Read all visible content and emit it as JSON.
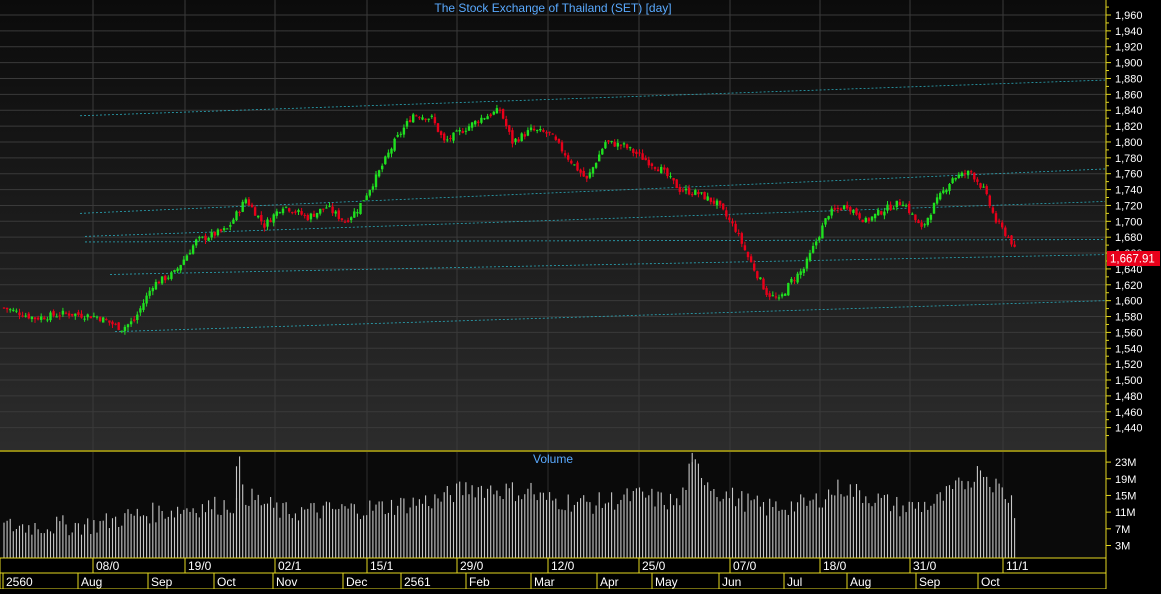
{
  "chart_data": {
    "type": "candlestick",
    "title": "The Stock Exchange of Thailand (SET) [day]",
    "volume_title": "Volume",
    "last_price_label": "1,667.91",
    "ylim": [
      1420,
      1970
    ],
    "yticks": [
      "1,960",
      "1,940",
      "1,920",
      "1,900",
      "1,880",
      "1,860",
      "1,840",
      "1,820",
      "1,800",
      "1,780",
      "1,760",
      "1,740",
      "1,720",
      "1,700",
      "1,680",
      "1,660",
      "1,640",
      "1,620",
      "1,600",
      "1,580",
      "1,560",
      "1,540",
      "1,520",
      "1,500",
      "1,480",
      "1,460",
      "1,440"
    ],
    "volume_ylim": [
      0,
      25
    ],
    "volume_ticks": [
      "23M",
      "19M",
      "15M",
      "11M",
      "7M",
      "3M"
    ],
    "date_ticks": [
      "08/0",
      "19/0",
      "02/1",
      "15/1",
      "29/0",
      "12/0",
      "25/0",
      "07/0",
      "18/0",
      "31/0",
      "11/1"
    ],
    "month_labels": [
      "2560",
      "Aug",
      "Sep",
      "Oct",
      "Nov",
      "Dec",
      "2561",
      "Feb",
      "Mar",
      "Apr",
      "May",
      "Jun",
      "Jul",
      "Aug",
      "Sep",
      "Oct"
    ],
    "anchors": [
      [
        0,
        1591
      ],
      [
        10,
        1578
      ],
      [
        20,
        1584
      ],
      [
        30,
        1580
      ],
      [
        38,
        1565
      ],
      [
        42,
        1575
      ],
      [
        48,
        1620
      ],
      [
        55,
        1635
      ],
      [
        62,
        1675
      ],
      [
        72,
        1690
      ],
      [
        78,
        1728
      ],
      [
        84,
        1695
      ],
      [
        90,
        1720
      ],
      [
        98,
        1705
      ],
      [
        104,
        1718
      ],
      [
        110,
        1700
      ],
      [
        114,
        1715
      ],
      [
        120,
        1755
      ],
      [
        126,
        1800
      ],
      [
        132,
        1835
      ],
      [
        138,
        1830
      ],
      [
        142,
        1800
      ],
      [
        148,
        1815
      ],
      [
        154,
        1830
      ],
      [
        160,
        1840
      ],
      [
        164,
        1800
      ],
      [
        170,
        1815
      ],
      [
        176,
        1810
      ],
      [
        182,
        1780
      ],
      [
        188,
        1752
      ],
      [
        194,
        1800
      ],
      [
        200,
        1795
      ],
      [
        206,
        1780
      ],
      [
        212,
        1765
      ],
      [
        218,
        1740
      ],
      [
        224,
        1735
      ],
      [
        230,
        1722
      ],
      [
        236,
        1690
      ],
      [
        240,
        1655
      ],
      [
        246,
        1610
      ],
      [
        250,
        1600
      ],
      [
        254,
        1625
      ],
      [
        258,
        1640
      ],
      [
        262,
        1675
      ],
      [
        266,
        1710
      ],
      [
        272,
        1720
      ],
      [
        278,
        1700
      ],
      [
        284,
        1715
      ],
      [
        290,
        1725
      ],
      [
        296,
        1690
      ],
      [
        300,
        1720
      ],
      [
        306,
        1755
      ],
      [
        312,
        1762
      ],
      [
        316,
        1740
      ],
      [
        320,
        1700
      ],
      [
        324,
        1680
      ],
      [
        326,
        1668
      ]
    ],
    "volume_anchors": [
      [
        0,
        7.5
      ],
      [
        30,
        8
      ],
      [
        40,
        10
      ],
      [
        60,
        12
      ],
      [
        75,
        13
      ],
      [
        76,
        22
      ],
      [
        78,
        15
      ],
      [
        90,
        11
      ],
      [
        120,
        12
      ],
      [
        140,
        14
      ],
      [
        150,
        17
      ],
      [
        165,
        16
      ],
      [
        175,
        14
      ],
      [
        190,
        13
      ],
      [
        205,
        15
      ],
      [
        218,
        13
      ],
      [
        222,
        23
      ],
      [
        230,
        16
      ],
      [
        245,
        12
      ],
      [
        260,
        13
      ],
      [
        270,
        17
      ],
      [
        290,
        12
      ],
      [
        300,
        13
      ],
      [
        310,
        18
      ],
      [
        315,
        21
      ],
      [
        325,
        14
      ],
      [
        326,
        11
      ]
    ],
    "trendlines": [
      [
        [
          80,
          1833
        ],
        [
          1105,
          1878
        ]
      ],
      [
        [
          80,
          1710
        ],
        [
          1105,
          1766
        ]
      ],
      [
        [
          85,
          1681
        ],
        [
          1105,
          1725
        ]
      ],
      [
        [
          85,
          1674
        ],
        [
          1105,
          1677
        ]
      ],
      [
        [
          110,
          1633
        ],
        [
          1105,
          1658
        ]
      ],
      [
        [
          115,
          1561
        ],
        [
          1105,
          1600
        ]
      ]
    ],
    "grid": true
  }
}
